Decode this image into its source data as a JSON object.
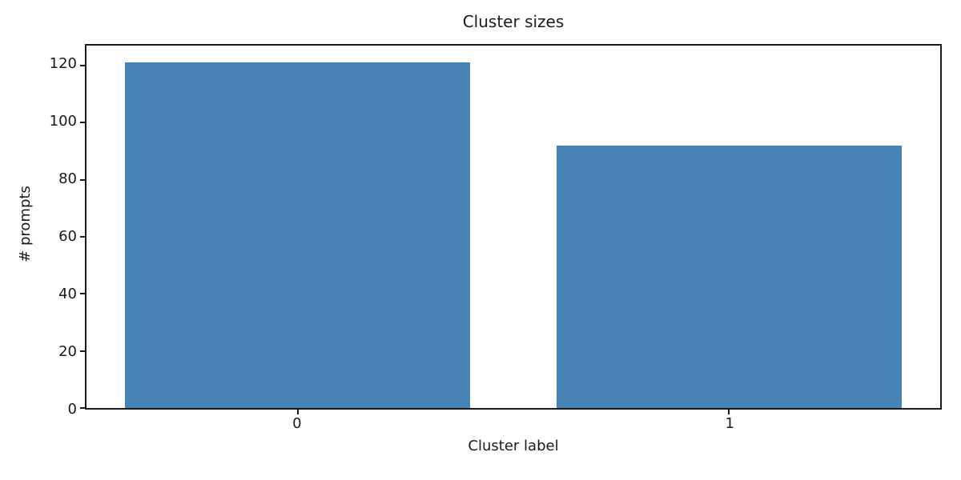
{
  "figure": {
    "background": "#ffffff",
    "axis_color": "#1a1a1a",
    "text_color": "#1a1a1a"
  },
  "chart_data": {
    "type": "bar",
    "title": "Cluster sizes",
    "xlabel": "Cluster label",
    "ylabel": "# prompts",
    "categories": [
      "0",
      "1"
    ],
    "values": [
      121,
      92
    ],
    "yticks": [
      0,
      20,
      40,
      60,
      80,
      100,
      120
    ],
    "ylim": [
      0,
      127
    ],
    "xlim": [
      -0.49,
      1.49
    ],
    "bar_width": 0.8,
    "bar_color": "#4682b4",
    "grid": false,
    "legend": null
  }
}
